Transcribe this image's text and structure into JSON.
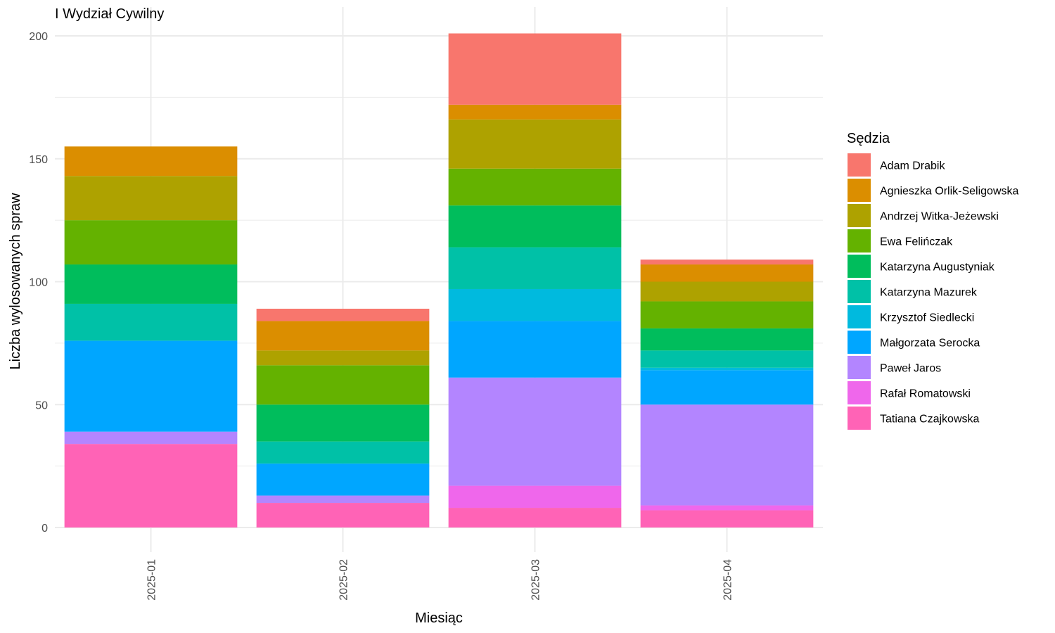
{
  "chart_data": {
    "type": "bar",
    "stacked": true,
    "title": "I Wydział Cywilny",
    "xlabel": "Miesiąc",
    "ylabel": "Liczba wylosowanych spraw",
    "ylim": [
      0,
      210
    ],
    "yticks": [
      0,
      50,
      100,
      150,
      200
    ],
    "grid": true,
    "legend_title": "Sędzia",
    "legend_position": "right",
    "categories": [
      "2025-01",
      "2025-02",
      "2025-03",
      "2025-04"
    ],
    "series": [
      {
        "name": "Adam Drabik",
        "color": "#F8766D",
        "values": [
          0,
          5,
          29,
          2
        ]
      },
      {
        "name": "Agnieszka Orlik-Seligowska",
        "color": "#DB8E00",
        "values": [
          12,
          12,
          6,
          7
        ]
      },
      {
        "name": "Andrzej Witka-Jeżewski",
        "color": "#AEA200",
        "values": [
          18,
          6,
          20,
          8
        ]
      },
      {
        "name": "Ewa Felińczak",
        "color": "#64B200",
        "values": [
          18,
          16,
          15,
          11
        ]
      },
      {
        "name": "Katarzyna Augustyniak",
        "color": "#00BD5C",
        "values": [
          16,
          15,
          17,
          9
        ]
      },
      {
        "name": "Katarzyna Mazurek",
        "color": "#00C1A7",
        "values": [
          15,
          9,
          17,
          7
        ]
      },
      {
        "name": "Krzysztof Siedlecki",
        "color": "#00BADE",
        "values": [
          0,
          0,
          13,
          1
        ]
      },
      {
        "name": "Małgorzata Serocka",
        "color": "#00A6FF",
        "values": [
          37,
          13,
          23,
          14
        ]
      },
      {
        "name": "Paweł Jaros",
        "color": "#B385FF",
        "values": [
          5,
          3,
          44,
          41
        ]
      },
      {
        "name": "Rafał Romatowski",
        "color": "#EF67EB",
        "values": [
          0,
          0,
          9,
          2
        ]
      },
      {
        "name": "Tatiana Czajkowska",
        "color": "#FF63B6",
        "values": [
          34,
          10,
          8,
          7
        ]
      }
    ]
  }
}
